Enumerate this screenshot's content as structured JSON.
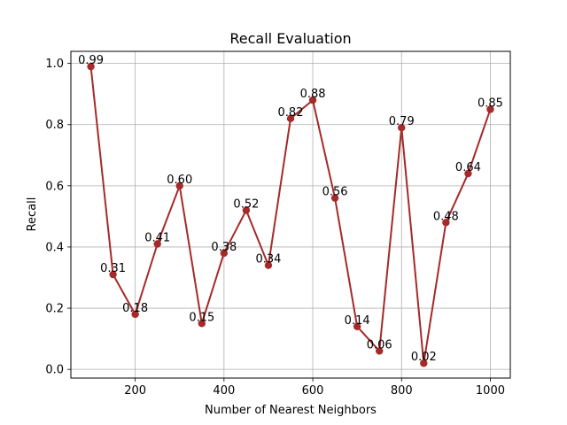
{
  "chart_data": {
    "type": "line",
    "title": "Recall Evaluation",
    "xlabel": "Number of Nearest Neighbors",
    "ylabel": "Recall",
    "x": [
      100,
      150,
      200,
      250,
      300,
      350,
      400,
      450,
      500,
      550,
      600,
      650,
      700,
      750,
      800,
      850,
      900,
      950,
      1000
    ],
    "series": [
      {
        "values": [
          0.99,
          0.31,
          0.18,
          0.41,
          0.6,
          0.15,
          0.38,
          0.52,
          0.34,
          0.82,
          0.88,
          0.56,
          0.14,
          0.06,
          0.79,
          0.02,
          0.48,
          0.64,
          0.85
        ],
        "labels": [
          "0.99",
          "0.31",
          "0.18",
          "0.41",
          "0.60",
          "0.15",
          "0.38",
          "0.52",
          "0.34",
          "0.82",
          "0.88",
          "0.56",
          "0.14",
          "0.06",
          "0.79",
          "0.02",
          "0.48",
          "0.64",
          "0.85"
        ],
        "color": "#a52a2a"
      }
    ],
    "xlim": [
      55,
      1045
    ],
    "ylim": [
      -0.0285,
      1.0395
    ],
    "x_ticks": [
      200,
      400,
      600,
      800,
      1000
    ],
    "x_tick_labels": [
      "200",
      "400",
      "600",
      "800",
      "1000"
    ],
    "y_ticks": [
      0.0,
      0.2,
      0.4,
      0.6,
      0.8,
      1.0
    ],
    "y_tick_labels": [
      "0.0",
      "0.2",
      "0.4",
      "0.6",
      "0.8",
      "1.0"
    ],
    "grid": true,
    "markers": true
  }
}
